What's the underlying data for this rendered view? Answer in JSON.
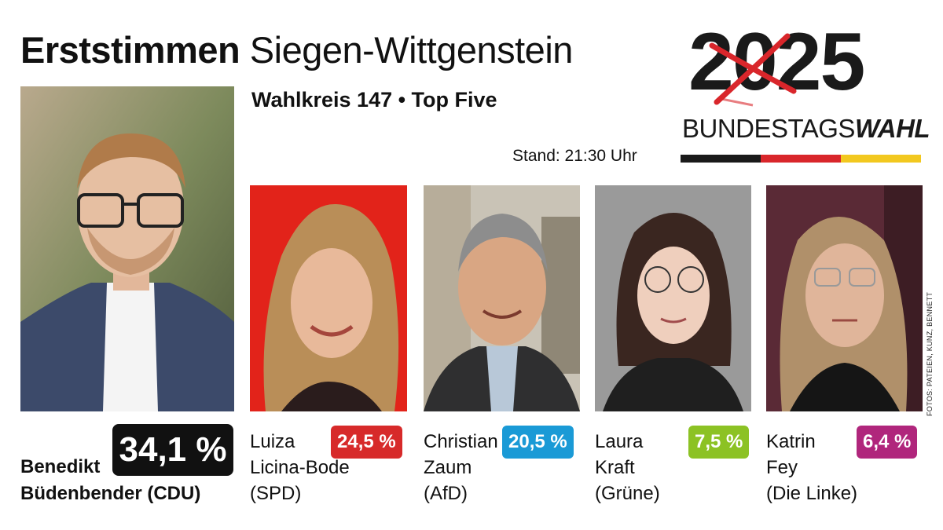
{
  "header": {
    "title_bold": "Erststimmen",
    "title_regular": "Siegen-Wittgenstein",
    "subtitle": "Wahlkreis 147 • Top Five",
    "stand": "Stand: 21:30 Uhr"
  },
  "logo": {
    "year": "2025",
    "word_regular": "BUNDESTAGS",
    "word_bold": "WAHL",
    "flag_colors": [
      "#1a1a1a",
      "#d9262b",
      "#f2c81f"
    ],
    "cross_color": "#d9262b"
  },
  "photo_credit": "FOTOS: PATEIEN, KUNZ, BENNETT",
  "candidates": [
    {
      "first": "Benedikt",
      "last": "Büdenbender (CDU)",
      "percent": "34,1 %",
      "share": 34.1,
      "color": "#111111"
    },
    {
      "first": "Luiza",
      "last": "Licina-Bode",
      "party": "(SPD)",
      "percent": "24,5 %",
      "share": 24.5,
      "color": "#d72a2a"
    },
    {
      "first": "Christian",
      "last": "Zaum",
      "party": "(AfD)",
      "percent": "20,5 %",
      "share": 20.5,
      "color": "#1a9ad6"
    },
    {
      "first": "Laura",
      "last": "Kraft",
      "party": "(Grüne)",
      "percent": "7,5 %",
      "share": 7.5,
      "color": "#8cc224"
    },
    {
      "first": "Katrin",
      "last": "Fey",
      "party": "(Die Linke)",
      "percent": "6,4 %",
      "share": 6.4,
      "color": "#b0267c"
    }
  ]
}
